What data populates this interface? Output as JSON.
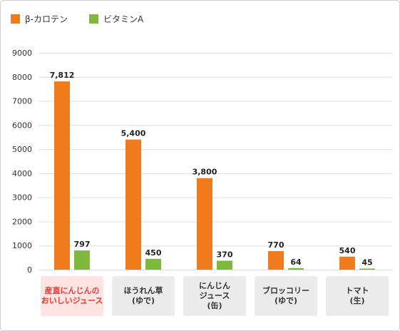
{
  "colors": {
    "series_beta_carotene": "#f07b1d",
    "series_vitamin_a": "#7dba3c",
    "highlight_text": "#e8392f",
    "highlight_bg": "#fde3e1",
    "category_bg": "#ebebeb",
    "grid": "#dddddd"
  },
  "chart_data": {
    "type": "bar",
    "categories": [
      "産直にんじんの\nおいしいジュース",
      "ほうれん草\n(ゆで)",
      "にんじん\nジュース\n(缶)",
      "ブロッコリー\n(ゆで)",
      "トマト\n(生)"
    ],
    "series": [
      {
        "name": "β-カロテン",
        "values": [
          7812,
          5400,
          3800,
          770,
          540
        ],
        "labels": [
          "7,812",
          "5,400",
          "3,800",
          "770",
          "540"
        ]
      },
      {
        "name": "ビタミンA",
        "values": [
          797,
          450,
          370,
          64,
          45
        ],
        "labels": [
          "797",
          "450",
          "370",
          "64",
          "45"
        ]
      }
    ],
    "ylim": [
      0,
      9000
    ],
    "yticks": [
      0,
      1000,
      2000,
      3000,
      4000,
      5000,
      6000,
      7000,
      8000,
      9000
    ],
    "grid": true,
    "legend_position": "top-left",
    "highlighted_category_index": 0
  }
}
